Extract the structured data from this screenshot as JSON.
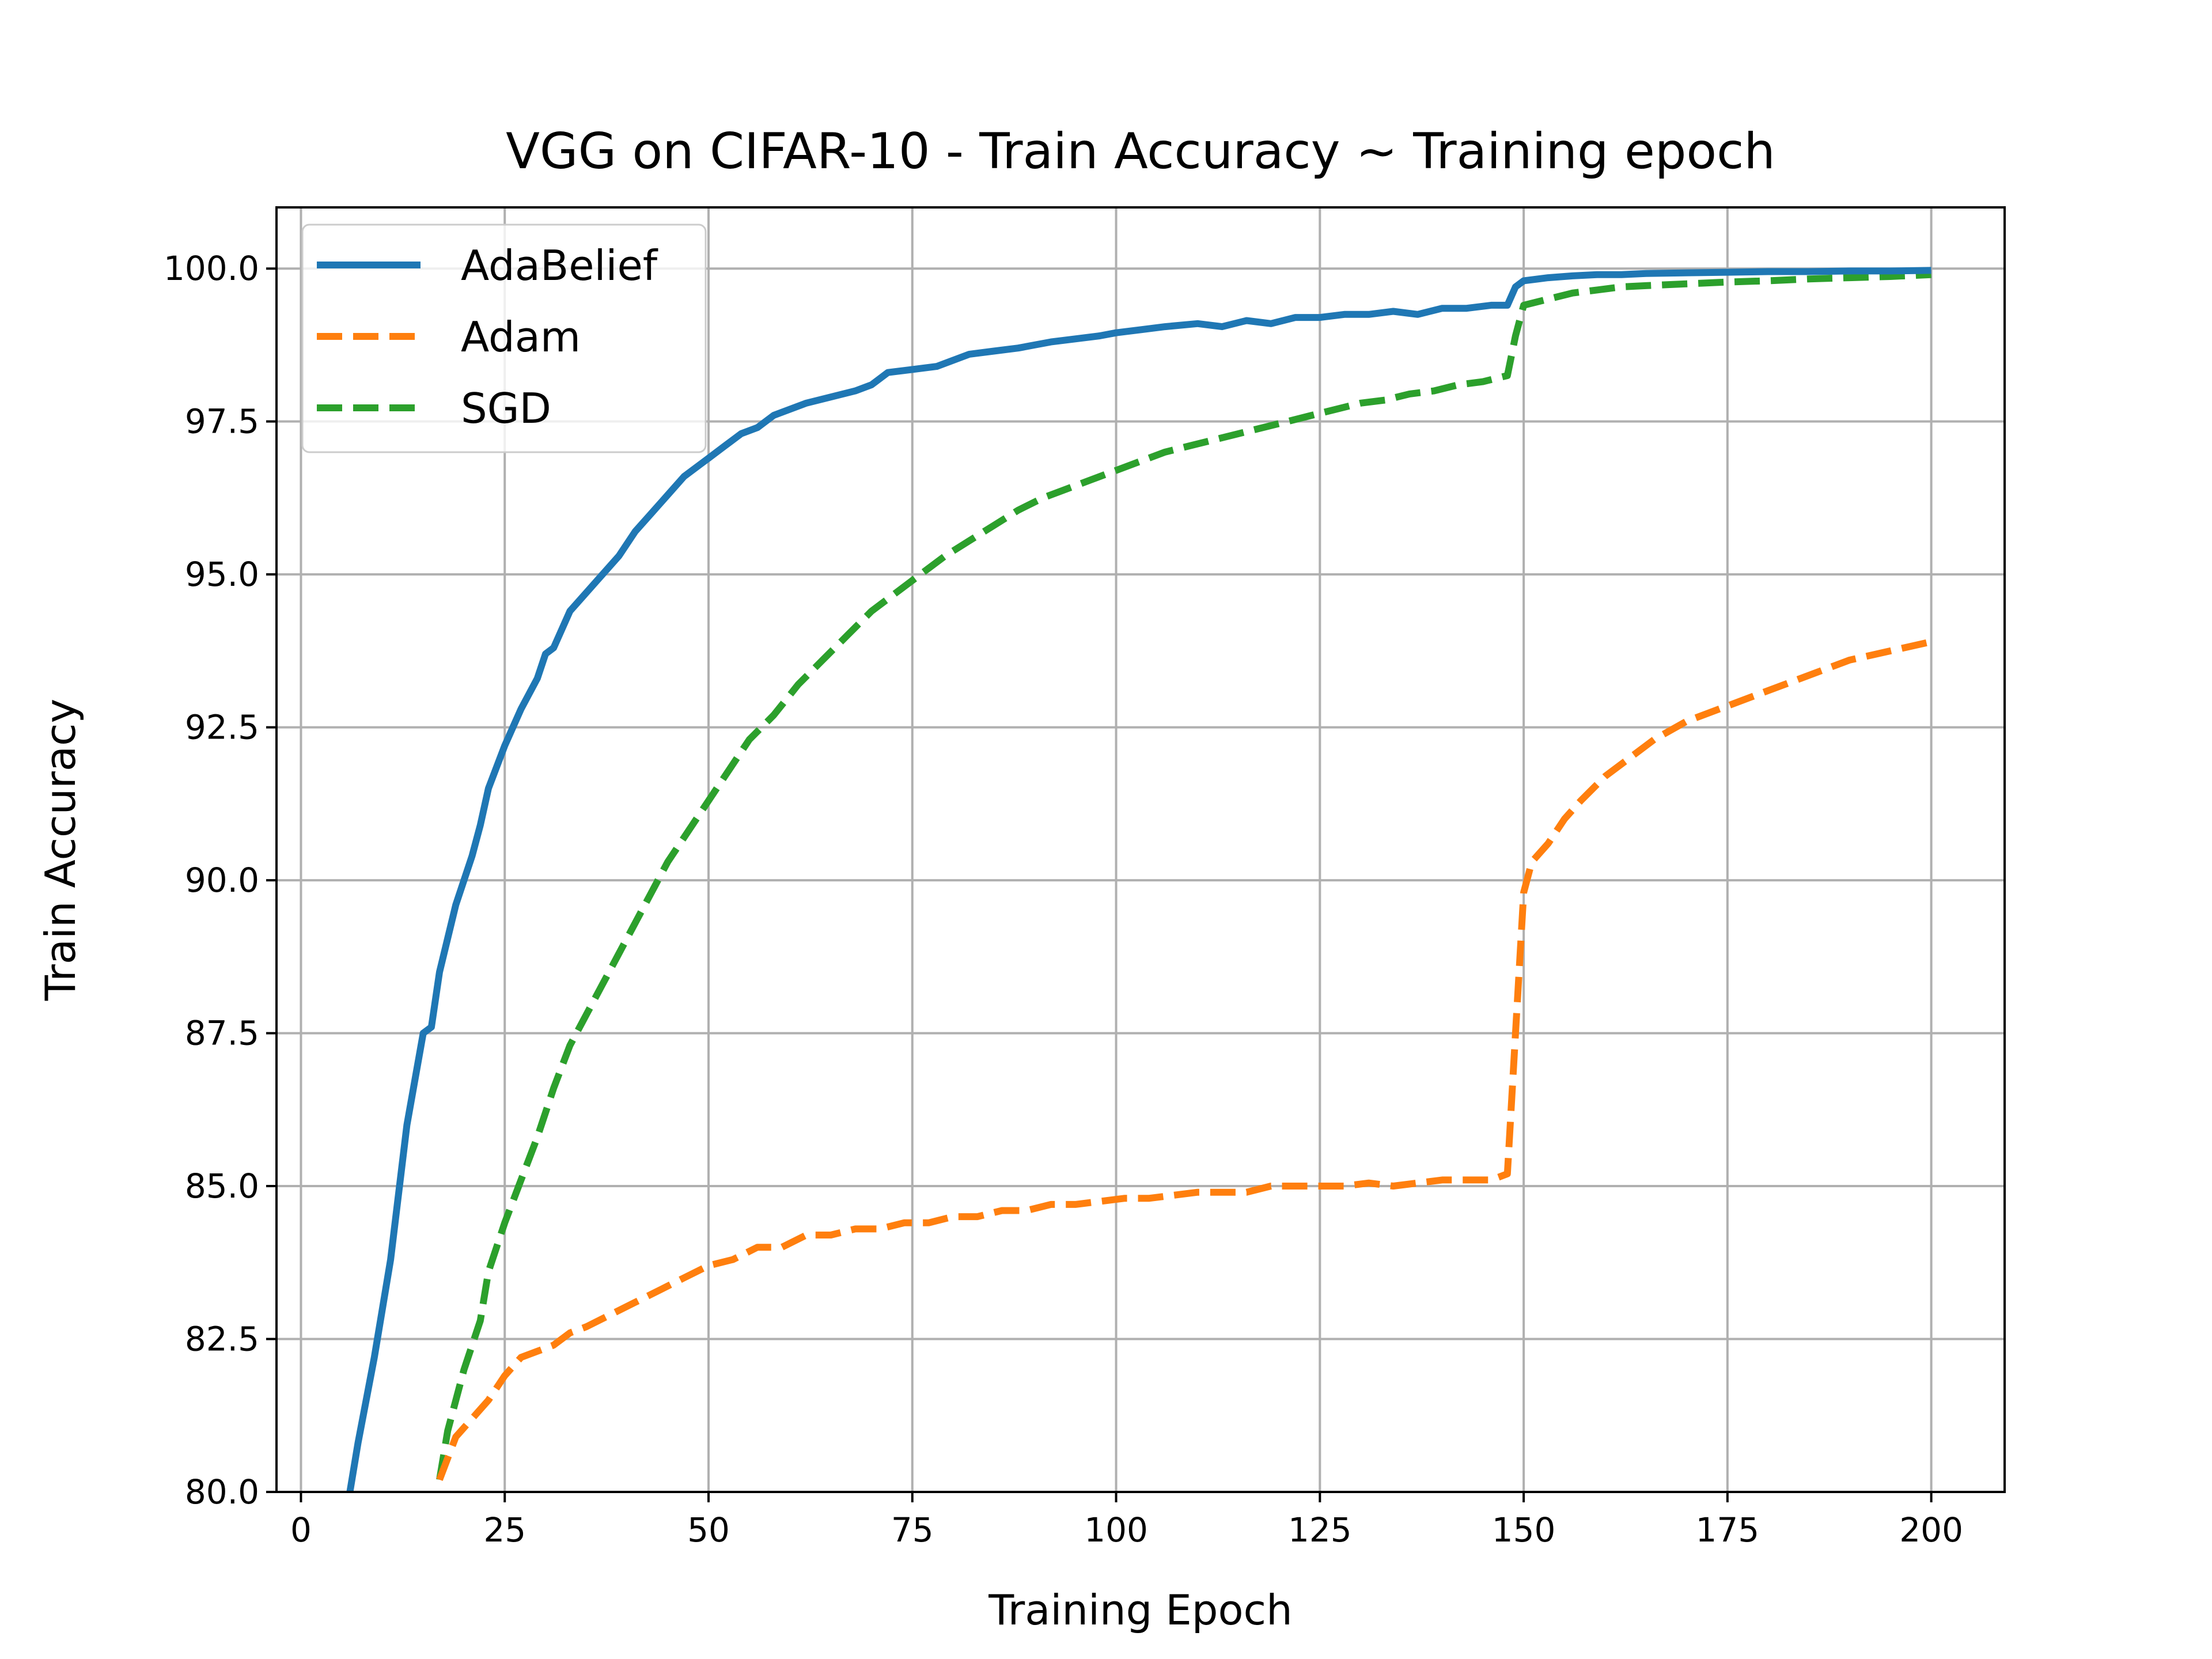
{
  "chart_data": {
    "type": "line",
    "title": "VGG on CIFAR-10 - Train Accuracy ~ Training epoch",
    "xlabel": "Training Epoch",
    "ylabel": "Train Accuracy",
    "xlim": [
      -3,
      209
    ],
    "ylim": [
      80.0,
      101.0
    ],
    "xticks": [
      0,
      25,
      50,
      75,
      100,
      125,
      150,
      175,
      200
    ],
    "xtick_labels": [
      "0",
      "25",
      "50",
      "75",
      "100",
      "125",
      "150",
      "175",
      "200"
    ],
    "yticks": [
      80.0,
      82.5,
      85.0,
      87.5,
      90.0,
      92.5,
      95.0,
      97.5,
      100.0
    ],
    "ytick_labels": [
      "80.0",
      "82.5",
      "85.0",
      "87.5",
      "90.0",
      "92.5",
      "95.0",
      "97.5",
      "100.0"
    ],
    "grid": true,
    "legend_position": "top-left",
    "series": [
      {
        "name": "AdaBelief",
        "color": "#1f77b4",
        "style": "solid",
        "x": [
          6,
          7,
          9,
          11,
          13,
          15,
          16,
          17,
          19,
          21,
          22,
          23,
          25,
          27,
          29,
          30,
          31,
          33,
          35,
          37,
          39,
          41,
          43,
          45,
          47,
          49,
          50,
          52,
          54,
          56,
          58,
          60,
          62,
          65,
          68,
          70,
          72,
          75,
          78,
          80,
          82,
          85,
          88,
          90,
          92,
          95,
          98,
          100,
          103,
          106,
          110,
          113,
          116,
          119,
          122,
          125,
          128,
          131,
          134,
          137,
          140,
          143,
          146,
          148,
          149,
          150,
          153,
          156,
          159,
          162,
          165,
          170,
          175,
          180,
          185,
          190,
          195,
          200
        ],
        "y": [
          80.0,
          80.8,
          82.2,
          83.8,
          86.0,
          87.5,
          87.6,
          88.5,
          89.6,
          90.4,
          90.9,
          91.5,
          92.2,
          92.8,
          93.3,
          93.7,
          93.8,
          94.4,
          94.7,
          95.0,
          95.3,
          95.7,
          96.0,
          96.3,
          96.6,
          96.8,
          96.9,
          97.1,
          97.3,
          97.4,
          97.6,
          97.7,
          97.8,
          97.9,
          98.0,
          98.1,
          98.3,
          98.35,
          98.4,
          98.5,
          98.6,
          98.65,
          98.7,
          98.75,
          98.8,
          98.85,
          98.9,
          98.95,
          99.0,
          99.05,
          99.1,
          99.05,
          99.15,
          99.1,
          99.2,
          99.2,
          99.25,
          99.25,
          99.3,
          99.25,
          99.35,
          99.35,
          99.4,
          99.4,
          99.7,
          99.8,
          99.85,
          99.88,
          99.9,
          99.9,
          99.92,
          99.93,
          99.94,
          99.95,
          99.95,
          99.96,
          99.96,
          99.97
        ]
      },
      {
        "name": "Adam",
        "color": "#ff7f0e",
        "style": "dashed",
        "x": [
          17,
          19,
          21,
          23,
          25,
          27,
          29,
          31,
          33,
          35,
          38,
          41,
          44,
          47,
          50,
          53,
          56,
          59,
          62,
          65,
          68,
          71,
          74,
          77,
          80,
          83,
          86,
          89,
          92,
          95,
          98,
          101,
          104,
          107,
          110,
          113,
          116,
          119,
          122,
          125,
          128,
          131,
          134,
          137,
          140,
          143,
          146,
          148,
          149,
          150,
          151,
          153,
          155,
          157,
          160,
          163,
          166,
          170,
          174,
          178,
          182,
          186,
          190,
          195,
          200
        ],
        "y": [
          80.2,
          80.9,
          81.2,
          81.5,
          81.9,
          82.2,
          82.3,
          82.4,
          82.6,
          82.7,
          82.9,
          83.1,
          83.3,
          83.5,
          83.7,
          83.8,
          84.0,
          84.0,
          84.2,
          84.2,
          84.3,
          84.3,
          84.4,
          84.4,
          84.5,
          84.5,
          84.6,
          84.6,
          84.7,
          84.7,
          84.75,
          84.8,
          84.8,
          84.85,
          84.9,
          84.9,
          84.9,
          85.0,
          85.0,
          85.0,
          85.0,
          85.05,
          85.0,
          85.05,
          85.1,
          85.1,
          85.1,
          85.2,
          87.5,
          89.8,
          90.3,
          90.6,
          91.0,
          91.3,
          91.7,
          92.0,
          92.3,
          92.6,
          92.8,
          93.0,
          93.2,
          93.4,
          93.6,
          93.75,
          93.9
        ]
      },
      {
        "name": "SGD",
        "color": "#2ca02c",
        "style": "dashed",
        "x": [
          17,
          18,
          20,
          22,
          23,
          25,
          27,
          29,
          31,
          33,
          35,
          37,
          39,
          41,
          43,
          45,
          47,
          49,
          52,
          55,
          58,
          61,
          64,
          67,
          70,
          73,
          76,
          79,
          82,
          85,
          88,
          91,
          94,
          97,
          100,
          103,
          106,
          109,
          112,
          115,
          118,
          121,
          124,
          127,
          130,
          133,
          136,
          139,
          142,
          145,
          148,
          149,
          150,
          153,
          156,
          159,
          162,
          165,
          170,
          175,
          180,
          185,
          190,
          195,
          200
        ],
        "y": [
          80.2,
          81.0,
          82.0,
          82.8,
          83.6,
          84.4,
          85.1,
          85.8,
          86.6,
          87.3,
          87.8,
          88.3,
          88.8,
          89.3,
          89.8,
          90.3,
          90.7,
          91.1,
          91.7,
          92.3,
          92.7,
          93.2,
          93.6,
          94.0,
          94.4,
          94.7,
          95.0,
          95.3,
          95.55,
          95.8,
          96.05,
          96.25,
          96.4,
          96.55,
          96.7,
          96.85,
          97.0,
          97.1,
          97.2,
          97.3,
          97.4,
          97.5,
          97.6,
          97.7,
          97.8,
          97.85,
          97.95,
          98.0,
          98.1,
          98.15,
          98.25,
          98.9,
          99.4,
          99.5,
          99.6,
          99.65,
          99.7,
          99.72,
          99.75,
          99.78,
          99.8,
          99.83,
          99.85,
          99.87,
          99.9
        ]
      }
    ]
  }
}
